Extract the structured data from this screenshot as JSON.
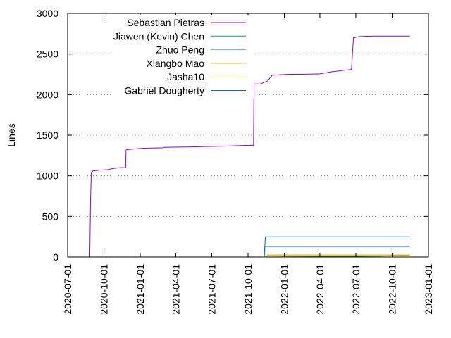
{
  "chart_data": {
    "type": "line",
    "title": "",
    "xlabel": "",
    "ylabel": "Lines",
    "ylim": [
      0,
      3000
    ],
    "yticks": [
      0,
      500,
      1000,
      1500,
      2000,
      2500,
      3000
    ],
    "xlim": [
      "2020-07-01",
      "2023-01-01"
    ],
    "xticks": [
      "2020-07-01",
      "2020-10-01",
      "2021-01-01",
      "2021-04-01",
      "2021-07-01",
      "2021-10-01",
      "2022-01-01",
      "2022-04-01",
      "2022-07-01",
      "2022-10-01",
      "2023-01-01"
    ],
    "grid": "y-dotted",
    "legend_position": "top-left",
    "series": [
      {
        "name": "Sebastian Pietras",
        "color": "#9400d3",
        "points": [
          [
            "2020-08-26",
            0
          ],
          [
            "2020-08-27",
            300
          ],
          [
            "2020-08-28",
            700
          ],
          [
            "2020-08-30",
            1040
          ],
          [
            "2020-09-03",
            1060
          ],
          [
            "2020-09-20",
            1070
          ],
          [
            "2020-10-10",
            1075
          ],
          [
            "2020-10-25",
            1090
          ],
          [
            "2020-11-10",
            1100
          ],
          [
            "2020-11-25",
            1100
          ],
          [
            "2020-11-26",
            1320
          ],
          [
            "2020-12-15",
            1330
          ],
          [
            "2021-01-10",
            1340
          ],
          [
            "2021-03-01",
            1345
          ],
          [
            "2021-03-02",
            1350
          ],
          [
            "2021-05-01",
            1355
          ],
          [
            "2021-06-15",
            1360
          ],
          [
            "2021-08-01",
            1365
          ],
          [
            "2021-09-01",
            1370
          ],
          [
            "2021-10-01",
            1375
          ],
          [
            "2021-10-15",
            1375
          ],
          [
            "2021-10-16",
            2130
          ],
          [
            "2021-11-01",
            2130
          ],
          [
            "2021-11-20",
            2170
          ],
          [
            "2021-12-01",
            2240
          ],
          [
            "2022-01-15",
            2250
          ],
          [
            "2022-02-15",
            2250
          ],
          [
            "2022-04-01",
            2255
          ],
          [
            "2022-05-01",
            2280
          ],
          [
            "2022-06-20",
            2310
          ],
          [
            "2022-06-25",
            2700
          ],
          [
            "2022-07-10",
            2715
          ],
          [
            "2022-08-15",
            2720
          ],
          [
            "2022-11-15",
            2720
          ]
        ]
      },
      {
        "name": "Jiawen (Kevin) Chen",
        "color": "#009e73",
        "points": [
          [
            "2021-11-10",
            0
          ],
          [
            "2022-04-01",
            5
          ],
          [
            "2022-09-01",
            10
          ],
          [
            "2022-10-01",
            15
          ],
          [
            "2022-11-01",
            20
          ],
          [
            "2022-11-15",
            20
          ]
        ]
      },
      {
        "name": "Zhuo Peng",
        "color": "#56b4e9",
        "points": [
          [
            "2021-11-12",
            0
          ],
          [
            "2021-11-13",
            125
          ],
          [
            "2022-11-15",
            125
          ]
        ]
      },
      {
        "name": "Xiangbo Mao",
        "color": "#e69f00",
        "points": [
          [
            "2021-11-18",
            0
          ],
          [
            "2021-11-19",
            25
          ],
          [
            "2022-11-15",
            25
          ]
        ]
      },
      {
        "name": "Jasha10",
        "color": "#f0e442",
        "points": [
          [
            "2021-11-15",
            0
          ],
          [
            "2021-11-16",
            15
          ],
          [
            "2022-11-15",
            15
          ]
        ]
      },
      {
        "name": "Gabriel Dougherty",
        "color": "#0072b2",
        "points": [
          [
            "2021-11-10",
            0
          ],
          [
            "2021-11-11",
            20
          ],
          [
            "2021-11-14",
            250
          ],
          [
            "2022-11-15",
            250
          ]
        ]
      }
    ]
  }
}
